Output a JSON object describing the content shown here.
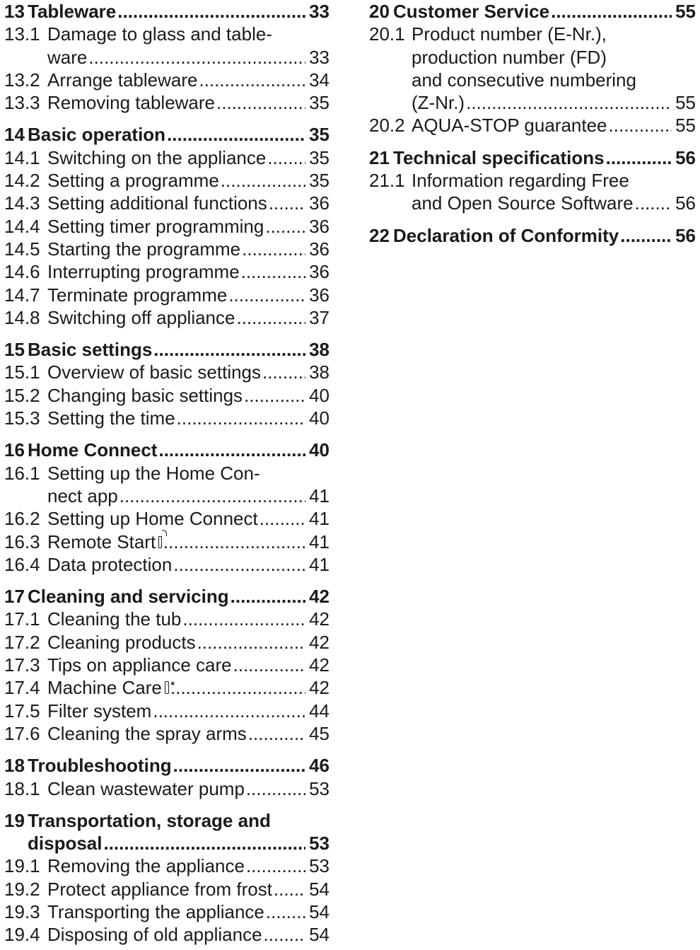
{
  "left_column": [
    {
      "head": {
        "num": "13",
        "title": "Tableware",
        "page": "33"
      },
      "items": [
        {
          "num": "13.1",
          "line1": "Damage to glass and table-",
          "line2": "ware",
          "page": "33"
        },
        {
          "num": "13.2",
          "title": "Arrange tableware",
          "page": "34"
        },
        {
          "num": "13.3",
          "title": "Removing tableware",
          "page": "35"
        }
      ]
    },
    {
      "head": {
        "num": "14",
        "title": "Basic operation",
        "page": "35"
      },
      "items": [
        {
          "num": "14.1",
          "title": "Switching on the appliance",
          "page": "35"
        },
        {
          "num": "14.2",
          "title": "Setting a programme",
          "page": "35"
        },
        {
          "num": "14.3",
          "title": "Setting additional functions",
          "page": "36"
        },
        {
          "num": "14.4",
          "title": "Setting timer programming",
          "page": "36"
        },
        {
          "num": "14.5",
          "title": "Starting the programme",
          "page": "36"
        },
        {
          "num": "14.6",
          "title": "Interrupting programme",
          "page": "36"
        },
        {
          "num": "14.7",
          "title": "Terminate programme",
          "page": "36"
        },
        {
          "num": "14.8",
          "title": "Switching off appliance",
          "page": "37"
        }
      ]
    },
    {
      "head": {
        "num": "15",
        "title": "Basic settings",
        "page": "38"
      },
      "items": [
        {
          "num": "15.1",
          "title": "Overview of basic settings",
          "page": "38"
        },
        {
          "num": "15.2",
          "title": "Changing basic settings",
          "page": "40"
        },
        {
          "num": "15.3",
          "title": "Setting the time",
          "page": "40"
        }
      ]
    },
    {
      "head": {
        "num": "16",
        "title": "Home Connect",
        "page": "40"
      },
      "items": [
        {
          "num": "16.1",
          "line1": "Setting up the Home Con-",
          "line2": "nect app",
          "page": "41"
        },
        {
          "num": "16.2",
          "title": "Setting up Home Connect",
          "page": "41"
        },
        {
          "num": "16.3",
          "title": "Remote Start",
          "icon": "remote-start-icon",
          "page": "41"
        },
        {
          "num": "16.4",
          "title": "Data protection",
          "page": "41"
        }
      ]
    },
    {
      "head": {
        "num": "17",
        "title": "Cleaning and servicing",
        "page": "42"
      },
      "items": [
        {
          "num": "17.1",
          "title": "Cleaning the tub",
          "page": "42"
        },
        {
          "num": "17.2",
          "title": "Cleaning products",
          "page": "42"
        },
        {
          "num": "17.3",
          "title": "Tips on appliance care",
          "page": "42"
        },
        {
          "num": "17.4",
          "title": "Machine Care",
          "icon": "machine-care-icon",
          "page": "42"
        },
        {
          "num": "17.5",
          "title": "Filter system",
          "page": "44"
        },
        {
          "num": "17.6",
          "title": "Cleaning the spray arms",
          "page": "45"
        }
      ]
    },
    {
      "head": {
        "num": "18",
        "title": "Troubleshooting",
        "page": "46"
      },
      "items": [
        {
          "num": "18.1",
          "title": "Clean wastewater pump",
          "page": "53"
        }
      ]
    },
    {
      "head": {
        "num": "19",
        "line1": "Transportation, storage and",
        "line2": "disposal",
        "page": "53"
      },
      "items": [
        {
          "num": "19.1",
          "title": "Removing the appliance",
          "page": "53"
        },
        {
          "num": "19.2",
          "title": "Protect appliance from frost",
          "page": "54"
        },
        {
          "num": "19.3",
          "title": "Transporting the appliance",
          "page": "54"
        },
        {
          "num": "19.4",
          "title": "Disposing of old appliance",
          "page": "54"
        }
      ]
    }
  ],
  "right_column": {
    "s20": {
      "head": {
        "num": "20",
        "title": "Customer Service",
        "page": "55"
      },
      "i1": {
        "num": "20.1",
        "line1": "Product number (E-Nr.),",
        "line2": "production number (FD)",
        "line3": "and consecutive numbering",
        "line4": "(Z-Nr.)",
        "page": "55"
      },
      "i2": {
        "num": "20.2",
        "title": "AQUA-STOP guarantee",
        "page": "55"
      }
    },
    "s21": {
      "head": {
        "num": "21",
        "title": "Technical specifications",
        "page": "56"
      },
      "i1": {
        "num": "21.1",
        "line1": "Information regarding Free",
        "line2": "and Open Source Software",
        "page": "56"
      }
    },
    "s22": {
      "head": {
        "num": "22",
        "title": "Declaration of Conformity",
        "page": "56"
      }
    }
  }
}
